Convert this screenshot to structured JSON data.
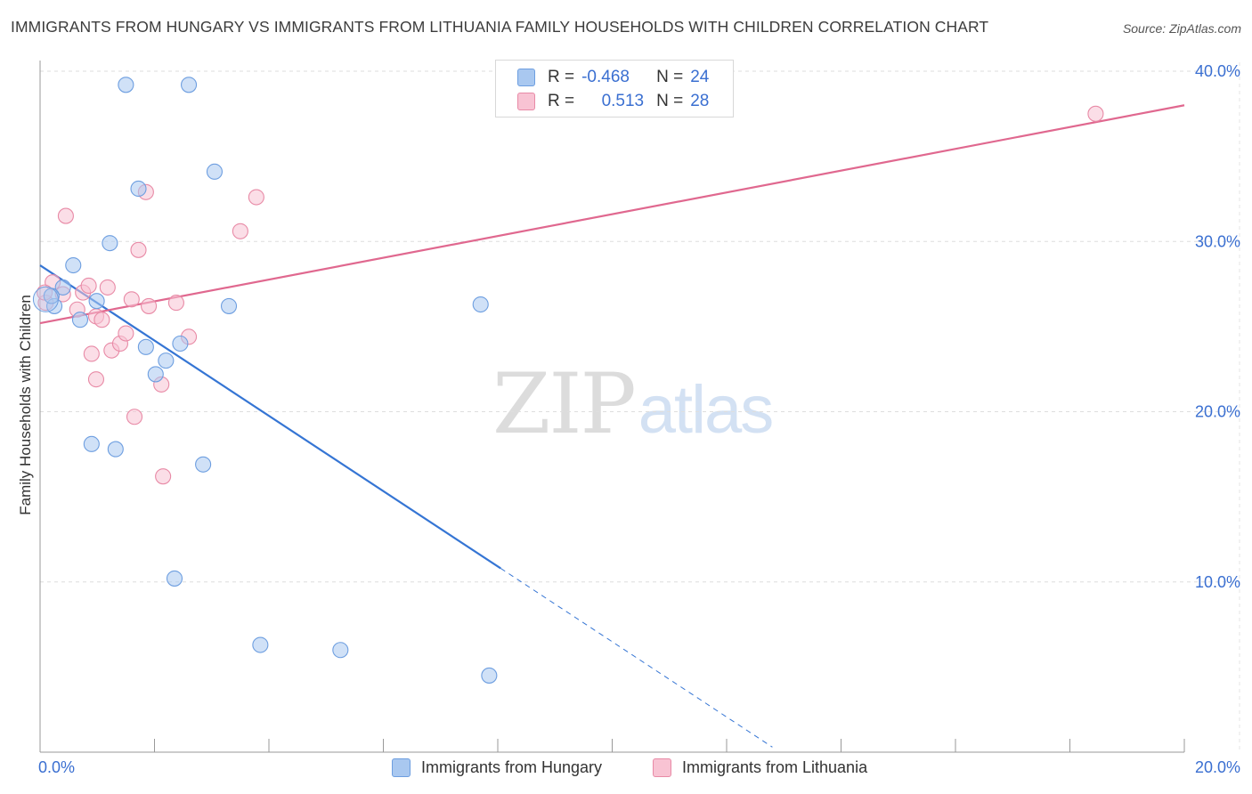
{
  "header": {
    "title": "IMMIGRANTS FROM HUNGARY VS IMMIGRANTS FROM LITHUANIA FAMILY HOUSEHOLDS WITH CHILDREN CORRELATION CHART",
    "source": "Source: ZipAtlas.com"
  },
  "watermark": {
    "zip": "ZIP",
    "atlas": "atlas"
  },
  "legend": {
    "rows": [
      {
        "r_label": "R =",
        "r_value": "-0.468",
        "n_label": "N =",
        "n_value": "24",
        "color": "#a9c8f0",
        "border": "#6d9ee0"
      },
      {
        "r_label": "R =",
        "r_value": "0.513",
        "n_label": "N =",
        "n_value": "28",
        "color": "#f8c3d3",
        "border": "#e88aa6"
      }
    ]
  },
  "bottom_legend": {
    "hungary": "Immigrants from Hungary",
    "lithuania": "Immigrants from Lithuania"
  },
  "chart_data": {
    "type": "scatter",
    "title": "IMMIGRANTS FROM HUNGARY VS IMMIGRANTS FROM LITHUANIA FAMILY HOUSEHOLDS WITH CHILDREN CORRELATION CHART",
    "xlabel": "",
    "ylabel": "Family Households with Children",
    "xlim": [
      0,
      20
    ],
    "ylim": [
      0,
      40
    ],
    "x_tick_labels": [
      "0.0%",
      "20.0%"
    ],
    "y_ticks": [
      10,
      20,
      30,
      40
    ],
    "y_tick_labels": [
      "10.0%",
      "20.0%",
      "30.0%",
      "40.0%"
    ],
    "grid": true,
    "legend_position": "top-center",
    "series": [
      {
        "name": "Immigrants from Hungary",
        "color": "#6d9ee0",
        "fill": "#a9c8f0",
        "line_color": "#3575d4",
        "points": [
          [
            0.25,
            26.2
          ],
          [
            0.4,
            27.3
          ],
          [
            0.58,
            28.6
          ],
          [
            0.7,
            25.4
          ],
          [
            0.99,
            26.5
          ],
          [
            1.22,
            29.9
          ],
          [
            1.5,
            39.2
          ],
          [
            1.72,
            33.1
          ],
          [
            1.85,
            23.8
          ],
          [
            2.02,
            22.2
          ],
          [
            2.2,
            23.0
          ],
          [
            2.45,
            24.0
          ],
          [
            2.6,
            39.2
          ],
          [
            3.05,
            34.1
          ],
          [
            3.3,
            26.2
          ],
          [
            0.9,
            18.1
          ],
          [
            1.32,
            17.8
          ],
          [
            2.85,
            16.9
          ],
          [
            2.35,
            10.2
          ],
          [
            3.85,
            6.3
          ],
          [
            5.25,
            6.0
          ],
          [
            7.7,
            26.3
          ],
          [
            7.85,
            4.5
          ],
          [
            0.2,
            26.8
          ]
        ],
        "trend": {
          "x0": 0,
          "y0": 28.6,
          "x1": 8.05,
          "y1": 10.8,
          "x_dash_end": 12.8
        }
      },
      {
        "name": "Immigrants from Lithuania",
        "color": "#e88aa6",
        "fill": "#f8c3d3",
        "line_color": "#e0688f",
        "points": [
          [
            0.1,
            26.4
          ],
          [
            0.22,
            27.6
          ],
          [
            0.4,
            26.9
          ],
          [
            0.45,
            31.5
          ],
          [
            0.65,
            26.0
          ],
          [
            0.75,
            27.0
          ],
          [
            0.85,
            27.4
          ],
          [
            0.98,
            25.6
          ],
          [
            1.08,
            25.4
          ],
          [
            1.18,
            27.3
          ],
          [
            1.25,
            23.6
          ],
          [
            1.4,
            24.0
          ],
          [
            1.5,
            24.6
          ],
          [
            1.6,
            26.6
          ],
          [
            1.72,
            29.5
          ],
          [
            1.85,
            32.9
          ],
          [
            1.9,
            26.2
          ],
          [
            2.12,
            21.6
          ],
          [
            2.38,
            26.4
          ],
          [
            2.6,
            24.4
          ],
          [
            3.5,
            30.6
          ],
          [
            3.78,
            32.6
          ],
          [
            0.9,
            23.4
          ],
          [
            0.98,
            21.9
          ],
          [
            1.65,
            19.7
          ],
          [
            2.15,
            16.2
          ],
          [
            18.45,
            37.5
          ],
          [
            0.08,
            27.0
          ]
        ],
        "trend": {
          "x0": 0,
          "y0": 25.2,
          "x1": 20,
          "y1": 38.0
        }
      }
    ]
  }
}
